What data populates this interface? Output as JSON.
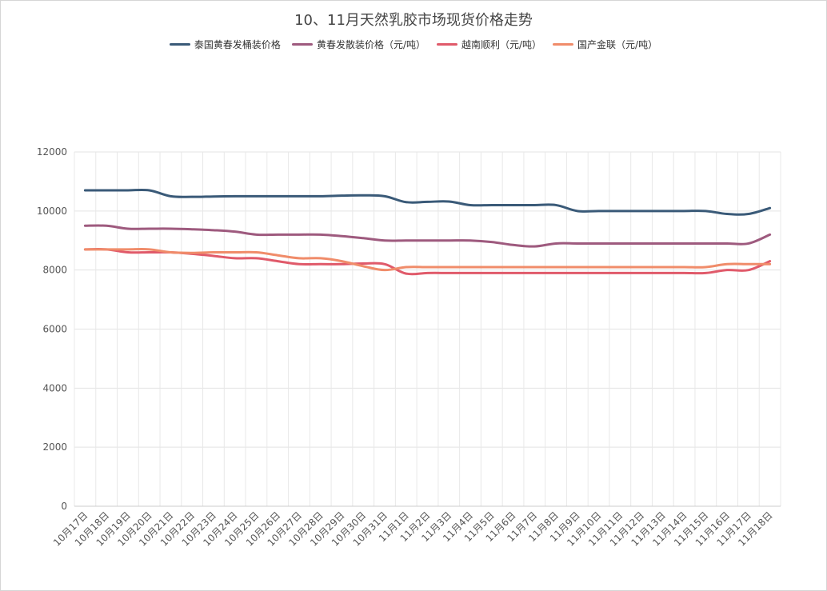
{
  "chart_data": {
    "type": "line",
    "title": "10、11月天然乳胶市场现货价格走势",
    "xlabel": "",
    "ylabel": "",
    "ylim": [
      0,
      12000
    ],
    "yticks": [
      0,
      2000,
      4000,
      6000,
      8000,
      10000,
      12000
    ],
    "grid": true,
    "legend": "top-center",
    "categories": [
      "10月17日",
      "10月18日",
      "10月19日",
      "10月20日",
      "10月21日",
      "10月22日",
      "10月23日",
      "10月24日",
      "10月25日",
      "10月26日",
      "10月27日",
      "10月28日",
      "10月29日",
      "10月30日",
      "10月31日",
      "11月1日",
      "11月2日",
      "11月3日",
      "11月4日",
      "11月5日",
      "11月6日",
      "11月7日",
      "11月8日",
      "11月9日",
      "11月10日",
      "11月11日",
      "11月12日",
      "11月13日",
      "11月14日",
      "11月15日",
      "11月16日",
      "11月17日",
      "11月18日"
    ],
    "series": [
      {
        "name": "泰国黄春发桶装价格",
        "color": "#3a5a78",
        "values": [
          10700,
          10700,
          10700,
          10700,
          10500,
          10480,
          10490,
          10500,
          10500,
          10500,
          10500,
          10500,
          10520,
          10530,
          10500,
          10300,
          10310,
          10320,
          10200,
          10200,
          10200,
          10200,
          10200,
          10000,
          10000,
          10000,
          10000,
          10000,
          10000,
          10000,
          9900,
          9900,
          10100
        ]
      },
      {
        "name": "黄春发散装价格（元/吨）",
        "color": "#9e5a7e",
        "values": [
          9500,
          9500,
          9400,
          9400,
          9400,
          9380,
          9350,
          9300,
          9200,
          9200,
          9200,
          9200,
          9150,
          9080,
          9000,
          9000,
          9000,
          9000,
          9000,
          8950,
          8850,
          8800,
          8900,
          8900,
          8900,
          8900,
          8900,
          8900,
          8900,
          8900,
          8900,
          8900,
          9200
        ]
      },
      {
        "name": "越南顺利（元/吨）",
        "color": "#e05a6a",
        "values": [
          8700,
          8700,
          8600,
          8600,
          8600,
          8550,
          8480,
          8400,
          8400,
          8300,
          8200,
          8200,
          8200,
          8220,
          8200,
          7880,
          7900,
          7900,
          7900,
          7900,
          7900,
          7900,
          7900,
          7900,
          7900,
          7900,
          7900,
          7900,
          7900,
          7900,
          8000,
          8000,
          8300
        ]
      },
      {
        "name": "国产金联（元/吨）",
        "color": "#f08c6a",
        "values": [
          8700,
          8700,
          8700,
          8700,
          8600,
          8580,
          8600,
          8600,
          8600,
          8500,
          8400,
          8400,
          8300,
          8130,
          8000,
          8100,
          8100,
          8100,
          8100,
          8100,
          8100,
          8100,
          8100,
          8100,
          8100,
          8100,
          8100,
          8100,
          8100,
          8100,
          8200,
          8200,
          8200
        ]
      }
    ]
  }
}
